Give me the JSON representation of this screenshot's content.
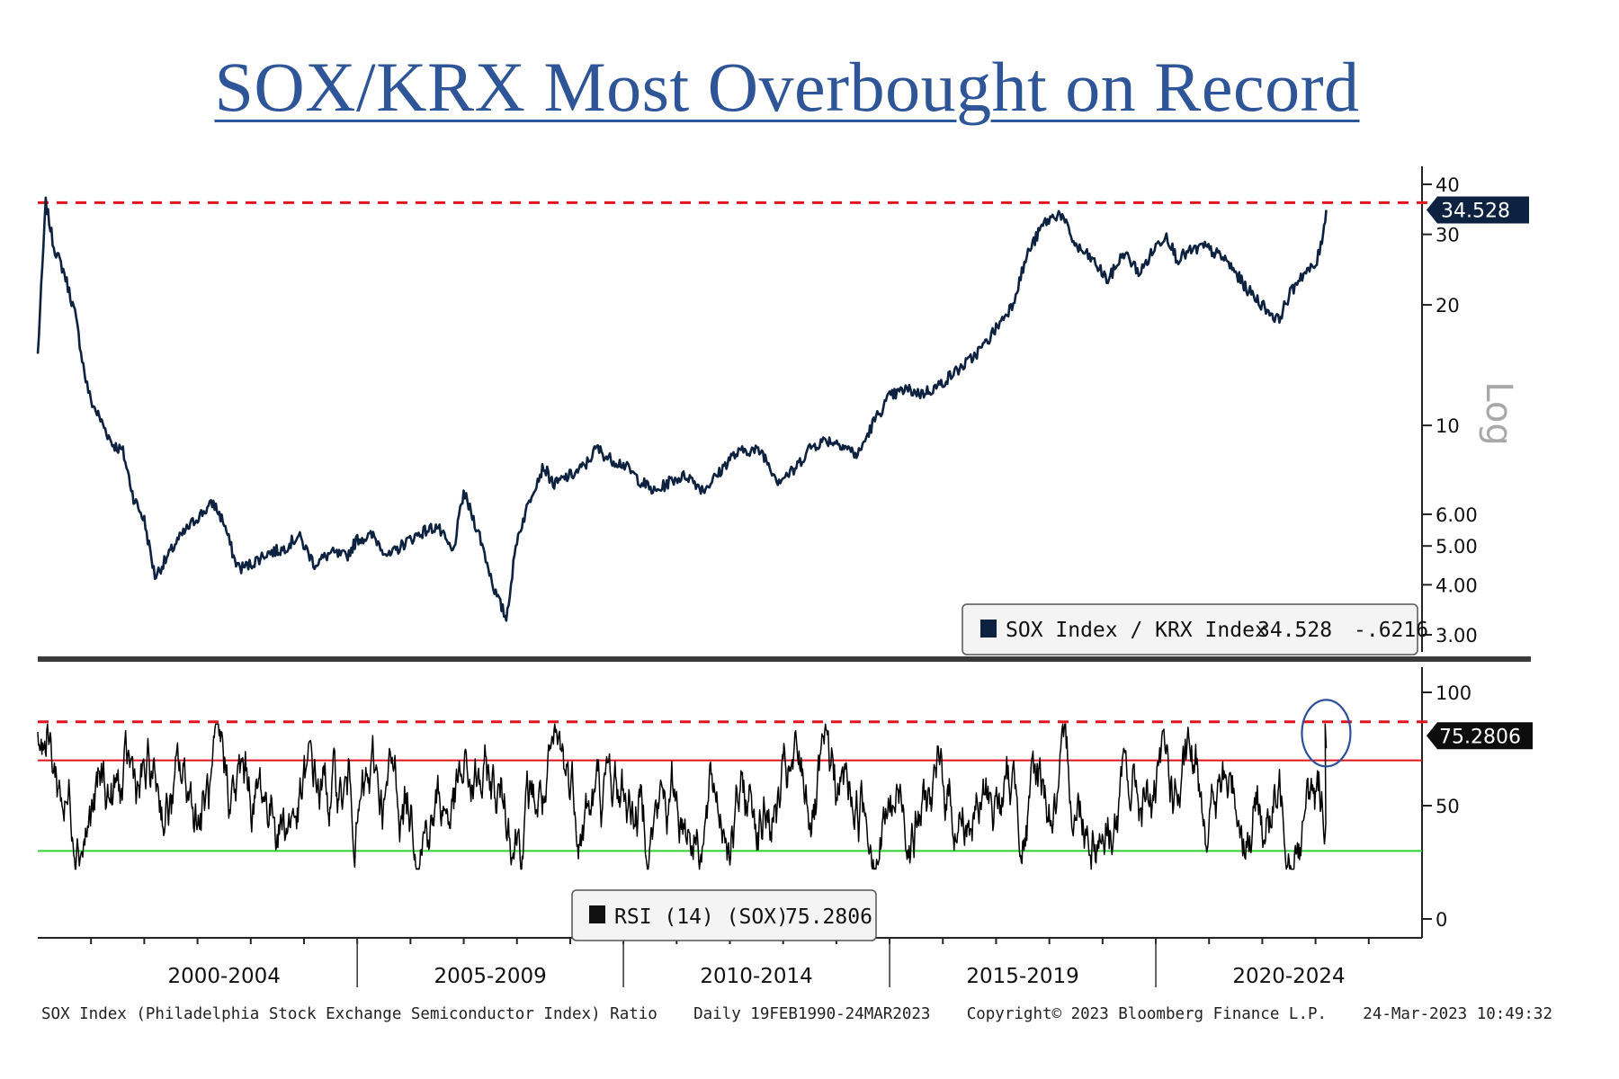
{
  "title": "SOX/KRX Most Overbought on Record",
  "footer": {
    "source": "SOX Index (Philadelphia Stock Exchange Semiconductor Index) Ratio",
    "range": "Daily 19FEB1990-24MAR2023",
    "copyright": "Copyright© 2023 Bloomberg Finance L.P.",
    "timestamp": "24-Mar-2023 10:49:32"
  },
  "chart_data": [
    {
      "type": "line",
      "name": "SOX Index / KRX Index",
      "scale": "log",
      "x_unit": "year",
      "x": [
        1999.0,
        1999.15,
        1999.3,
        1999.5,
        1999.7,
        1999.9,
        2000.0,
        2000.2,
        2000.4,
        2000.6,
        2000.8,
        2001.0,
        2001.2,
        2001.4,
        2001.6,
        2001.8,
        2002.0,
        2002.3,
        2002.5,
        2002.7,
        2002.8,
        2003.0,
        2003.3,
        2003.6,
        2003.9,
        2004.2,
        2004.5,
        2004.8,
        2005.0,
        2005.3,
        2005.6,
        2005.9,
        2006.2,
        2006.5,
        2006.8,
        2007.0,
        2007.3,
        2007.6,
        2007.8,
        2008.0,
        2008.3,
        2008.5,
        2008.7,
        2008.9,
        2009.1,
        2009.3,
        2009.5,
        2009.7,
        2010.0,
        2010.3,
        2010.6,
        2010.9,
        2011.2,
        2011.5,
        2011.8,
        2012.0,
        2012.3,
        2012.6,
        2012.9,
        2013.2,
        2013.5,
        2013.8,
        2014.1,
        2014.4,
        2014.7,
        2015.0,
        2015.3,
        2015.6,
        2015.9,
        2016.2,
        2016.5,
        2016.8,
        2017.0,
        2017.3,
        2017.6,
        2017.9,
        2018.2,
        2018.5,
        2018.8,
        2019.1,
        2019.4,
        2019.7,
        2020.0,
        2020.2,
        2020.4,
        2020.6,
        2020.9,
        2021.1,
        2021.3,
        2021.5,
        2021.7,
        2022.0,
        2022.3,
        2022.5,
        2022.7,
        2022.8,
        2023.0,
        2023.1,
        2023.2
      ],
      "y": [
        15.0,
        36.0,
        28.0,
        24.0,
        19.0,
        13.0,
        11.5,
        10.2,
        9.0,
        8.6,
        6.6,
        5.8,
        4.2,
        4.6,
        5.1,
        5.5,
        5.9,
        6.4,
        5.7,
        4.6,
        4.4,
        4.5,
        4.8,
        4.9,
        5.3,
        4.5,
        4.8,
        4.7,
        5.2,
        5.3,
        4.7,
        5.1,
        5.4,
        5.6,
        4.8,
        6.8,
        5.3,
        3.8,
        3.3,
        5.2,
        6.9,
        7.9,
        7.1,
        7.4,
        7.6,
        8.0,
        8.8,
        8.3,
        8.0,
        7.3,
        6.8,
        7.3,
        7.5,
        6.9,
        7.6,
        8.3,
        8.7,
        8.6,
        7.3,
        7.7,
        8.8,
        9.2,
        9.0,
        8.4,
        10.2,
        11.8,
        12.3,
        12.0,
        12.5,
        13.5,
        14.5,
        16.0,
        17.5,
        20.0,
        27.0,
        32.0,
        34.0,
        28.0,
        26.0,
        23.0,
        27.0,
        24.0,
        28.0,
        30.0,
        26.0,
        27.0,
        28.0,
        27.0,
        26.0,
        24.0,
        22.0,
        20.0,
        18.3,
        21.0,
        23.5,
        24.0,
        25.0,
        28.0,
        34.528
      ],
      "last_value_label": "34.528",
      "legend_value": "34.528",
      "legend_change": "-.6216",
      "y_ticks": [
        "40",
        "30",
        "20",
        "10",
        "6.00",
        "5.00",
        "4.00",
        "3.00"
      ],
      "scale_label": "Log",
      "series_color": "#0d2240",
      "record_line_color": "#e3121c"
    },
    {
      "type": "line",
      "name": "RSI (14) (SOX)",
      "x_unit": "year",
      "last_value_label": "75.2806",
      "legend_value": "75.2806",
      "ylim": [
        0,
        100
      ],
      "y_ticks": [
        "100",
        "50",
        "0"
      ],
      "overbought_level": 70,
      "oversold_level": 30,
      "record_level": 87,
      "series_color": "#000000",
      "overbought_color": "#e3121c",
      "oversold_color": "#2fd12f",
      "circle_color": "#2b4f9c"
    }
  ],
  "x_axis": {
    "period_labels": [
      "2000-2004",
      "2005-2009",
      "2010-2014",
      "2015-2019",
      "2020-2024"
    ]
  }
}
